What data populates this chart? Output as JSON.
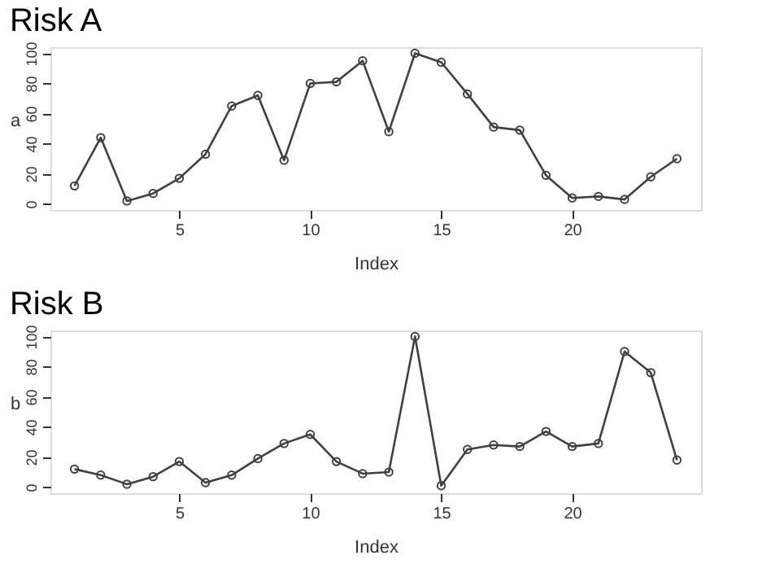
{
  "chart_data": [
    {
      "type": "line",
      "title": "Risk A",
      "xlabel": "Index",
      "ylabel": "a",
      "x": [
        1,
        2,
        3,
        4,
        5,
        6,
        7,
        8,
        9,
        10,
        11,
        12,
        13,
        14,
        15,
        16,
        17,
        18,
        19,
        20,
        21,
        22,
        23,
        24
      ],
      "series": [
        {
          "color": "#404040",
          "values": [
            12,
            44,
            2,
            7,
            17,
            33,
            65,
            72,
            29,
            80,
            81,
            95,
            48,
            100,
            94,
            73,
            51,
            49,
            19,
            4,
            5,
            3,
            18,
            30
          ]
        }
      ],
      "xlim": [
        0.08,
        24.92
      ],
      "xticks": [
        5,
        10,
        15,
        20
      ],
      "ylim": [
        -4,
        104
      ],
      "yticks": [
        0,
        20,
        40,
        60,
        80,
        100
      ],
      "marker": "circle",
      "line_style": "solid",
      "grid": false
    },
    {
      "type": "line",
      "title": "Risk B",
      "xlabel": "Index",
      "ylabel": "b",
      "x": [
        1,
        2,
        3,
        4,
        5,
        6,
        7,
        8,
        9,
        10,
        11,
        12,
        13,
        14,
        15,
        16,
        17,
        18,
        19,
        20,
        21,
        22,
        23,
        24
      ],
      "series": [
        {
          "color": "#404040",
          "values": [
            12,
            8,
            2,
            7,
            17,
            3,
            8,
            19,
            29,
            35,
            17,
            9,
            10,
            100,
            1,
            25,
            28,
            27,
            37,
            27,
            29,
            90,
            76,
            18
          ]
        }
      ],
      "xlim": [
        0.08,
        24.92
      ],
      "xticks": [
        5,
        10,
        15,
        20
      ],
      "ylim": [
        -4,
        104
      ],
      "yticks": [
        0,
        20,
        40,
        60,
        80,
        100
      ],
      "marker": "circle",
      "line_style": "solid",
      "grid": false
    }
  ]
}
